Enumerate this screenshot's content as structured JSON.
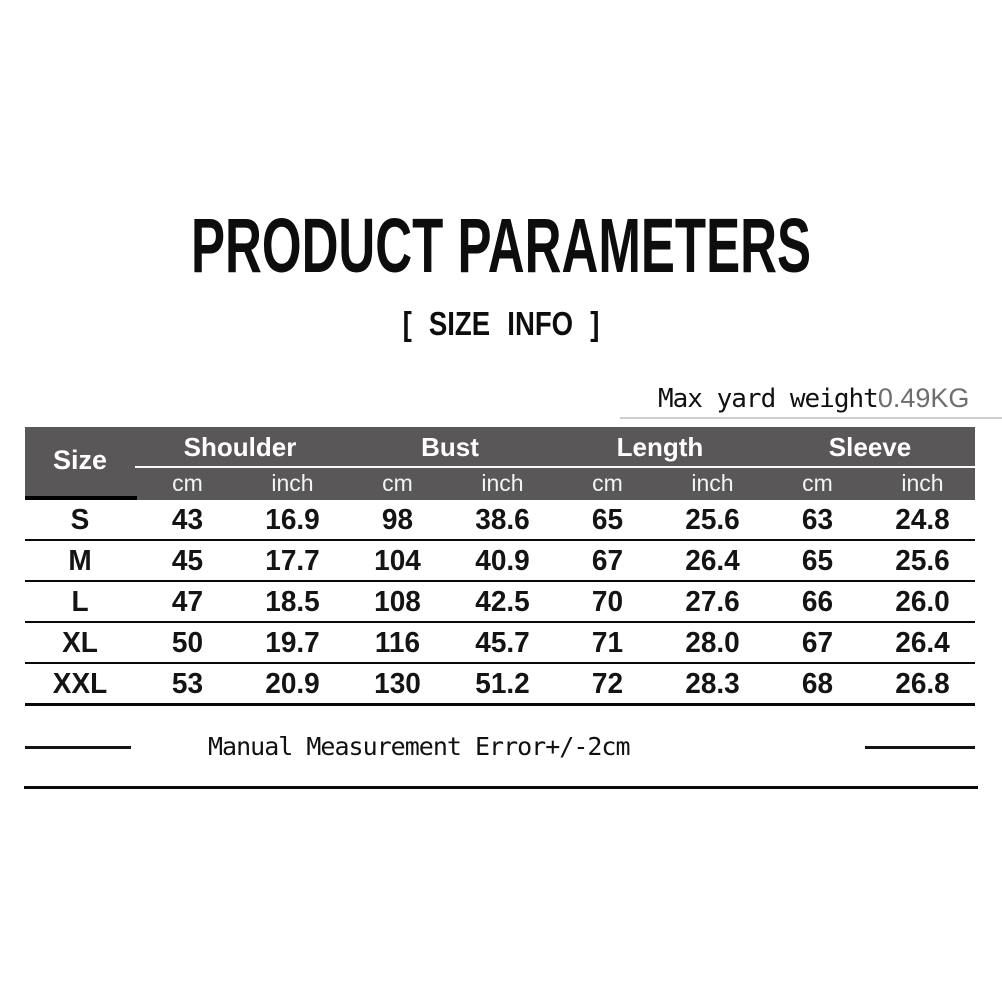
{
  "header": {
    "title": "PRODUCT PARAMETERS",
    "subtitle": "[ SIZE INFO ]"
  },
  "weight_note": {
    "label": "Max yard weight",
    "value": "0.49KG"
  },
  "table": {
    "corner": "Size",
    "groups": [
      {
        "label": "Shoulder"
      },
      {
        "label": "Bust"
      },
      {
        "label": "Length"
      },
      {
        "label": "Sleeve"
      }
    ],
    "units": [
      "cm",
      "inch",
      "cm",
      "inch",
      "cm",
      "inch",
      "cm",
      "inch"
    ],
    "rows": [
      {
        "cells": [
          "S",
          "43",
          "16.9",
          "98",
          "38.6",
          "65",
          "25.6",
          "63",
          "24.8"
        ]
      },
      {
        "cells": [
          "M",
          "45",
          "17.7",
          "104",
          "40.9",
          "67",
          "26.4",
          "65",
          "25.6"
        ]
      },
      {
        "cells": [
          "L",
          "47",
          "18.5",
          "108",
          "42.5",
          "70",
          "27.6",
          "66",
          "26.0"
        ]
      },
      {
        "cells": [
          "XL",
          "50",
          "19.7",
          "116",
          "45.7",
          "71",
          "28.0",
          "67",
          "26.4"
        ]
      },
      {
        "cells": [
          "XXL",
          "53",
          "20.9",
          "130",
          "51.2",
          "72",
          "28.3",
          "68",
          "26.8"
        ]
      }
    ]
  },
  "footer": {
    "note": "Manual Measurement Error+/-2cm"
  },
  "colors": {
    "header_bg": "#595757",
    "header_text": "#ffffff",
    "value_gray": "#6e6e6e",
    "line_black": "#0a0a0a"
  }
}
